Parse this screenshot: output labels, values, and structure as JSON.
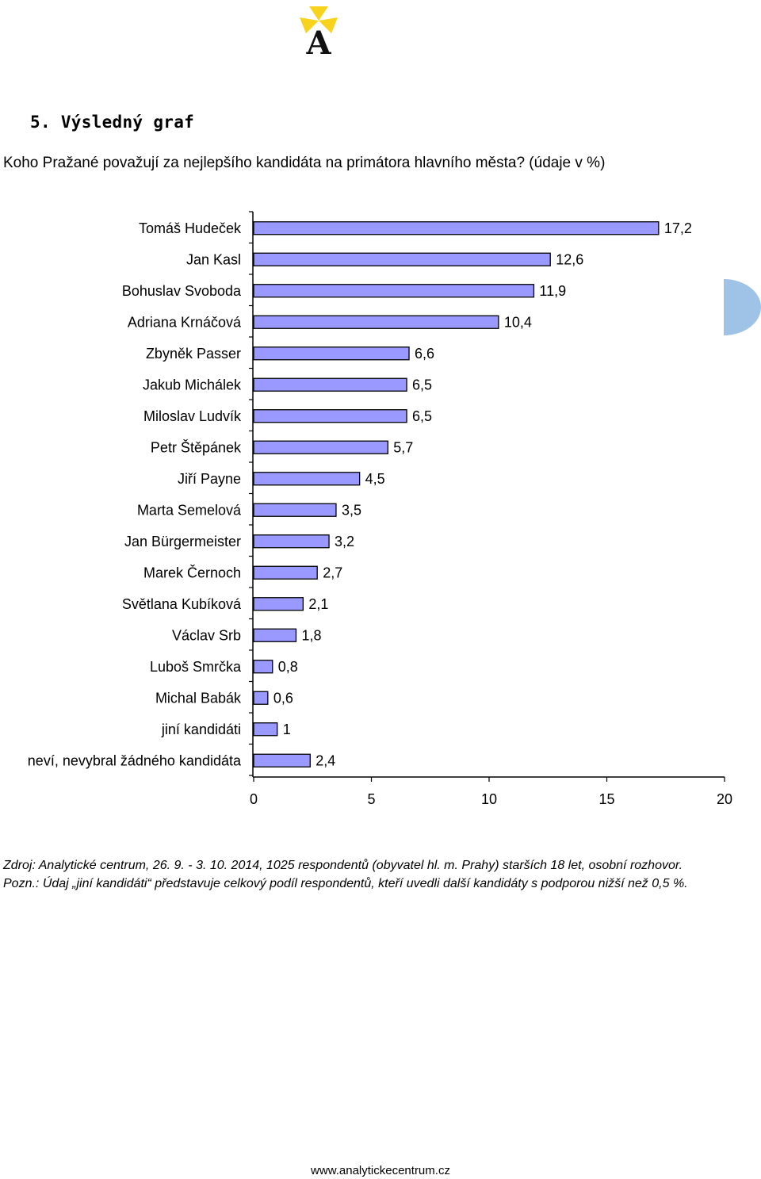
{
  "header": {
    "section_title": "5. Výsledný graf",
    "question": "Koho Pražané považují za nejlepšího kandidáta na primátora hlavního města? (údaje v %)"
  },
  "logo": {
    "letter": "A",
    "colors": {
      "petals": "#f7d31e",
      "letter": "#111111"
    }
  },
  "side_tab": {
    "color": "#9fc3e7"
  },
  "chart_data": {
    "type": "bar",
    "orientation": "horizontal",
    "categories": [
      "Tomáš Hudeček",
      "Jan Kasl",
      "Bohuslav Svoboda",
      "Adriana Krnáčová",
      "Zbyněk Passer",
      "Jakub Michálek",
      "Miloslav Ludvík",
      "Petr Štěpánek",
      "Jiří Payne",
      "Marta Semelová",
      "Jan Bürgermeister",
      "Marek Černoch",
      "Světlana Kubíková",
      "Václav Srb",
      "Luboš Smrčka",
      "Michal Babák",
      "jiní kandidáti",
      "neví, nevybral žádného kandidáta"
    ],
    "values": [
      17.2,
      12.6,
      11.9,
      10.4,
      6.6,
      6.5,
      6.5,
      5.7,
      4.5,
      3.5,
      3.2,
      2.7,
      2.1,
      1.8,
      0.8,
      0.6,
      1,
      2.4
    ],
    "value_labels": [
      "17,2",
      "12,6",
      "11,9",
      "10,4",
      "6,6",
      "6,5",
      "6,5",
      "5,7",
      "4,5",
      "3,5",
      "3,2",
      "2,7",
      "2,1",
      "1,8",
      "0,8",
      "0,6",
      "1",
      "2,4"
    ],
    "xlim": [
      0,
      20
    ],
    "xticks": [
      0,
      5,
      10,
      15,
      20
    ],
    "xtick_labels": [
      "0",
      "5",
      "10",
      "15",
      "20"
    ],
    "grid": false,
    "colors": {
      "bar_fill": "#9999ff",
      "bar_stroke": "#000000"
    }
  },
  "notes": {
    "source_label": "Zdroj:",
    "source_text": " Analytické centrum, 26. 9. - 3. 10. 2014, 1025 respondentů (obyvatel hl. m. Prahy) starších 18 let, osobní rozhovor.",
    "note_label": "Pozn.",
    "note_text": ": Údaj „jiní kandidáti“ představuje celkový podíl respondentů, kteří uvedli další kandidáty s podporou nižší než 0,5 %."
  },
  "footer": {
    "url": "www.analytickecentrum.cz"
  }
}
